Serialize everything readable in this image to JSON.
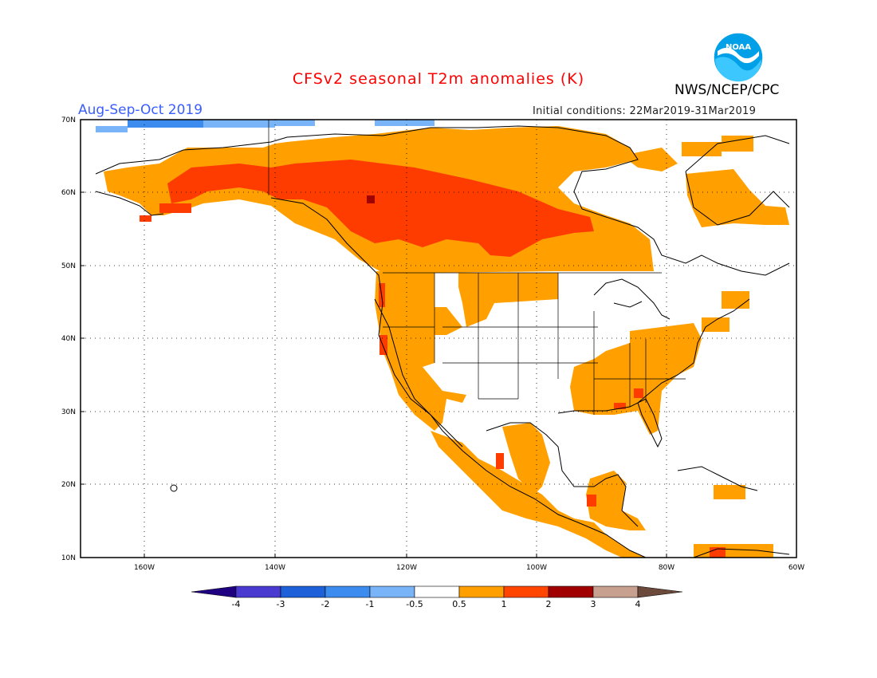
{
  "title": "CFSv2 seasonal T2m anomalies (K)",
  "organization": "NWS/NCEP/CPC",
  "logo_text": "NOAA",
  "season": "Aug-Sep-Oct 2019",
  "initial_conditions": "Initial conditions: 22Mar2019-31Mar2019",
  "map": {
    "lat_labels": [
      "70N",
      "60N",
      "50N",
      "40N",
      "30N",
      "20N",
      "10N"
    ],
    "lon_labels": [
      "160W",
      "140W",
      "120W",
      "100W",
      "80W",
      "60W"
    ],
    "lat_range": [
      10,
      70
    ],
    "lon_range": [
      -172,
      -60
    ],
    "grid": "dotted"
  },
  "colorbar": {
    "labels": [
      "-4",
      "-3",
      "-2",
      "-1",
      "-0.5",
      "0.5",
      "1",
      "2",
      "3",
      "4"
    ],
    "colors": [
      "#1f0080",
      "#4a3ad0",
      "#1e60d8",
      "#3c8cf0",
      "#7ab4f8",
      "#ffffff",
      "#ff9f00",
      "#ff4500",
      "#a00000",
      "#c8a090",
      "#6b4a3c"
    ]
  },
  "anomaly_colors": {
    "warm1": "#ff9f00",
    "warm2": "#ff3c00",
    "warm3": "#a00000",
    "cool1": "#7ab4f8",
    "cool2": "#3c8cf0"
  }
}
